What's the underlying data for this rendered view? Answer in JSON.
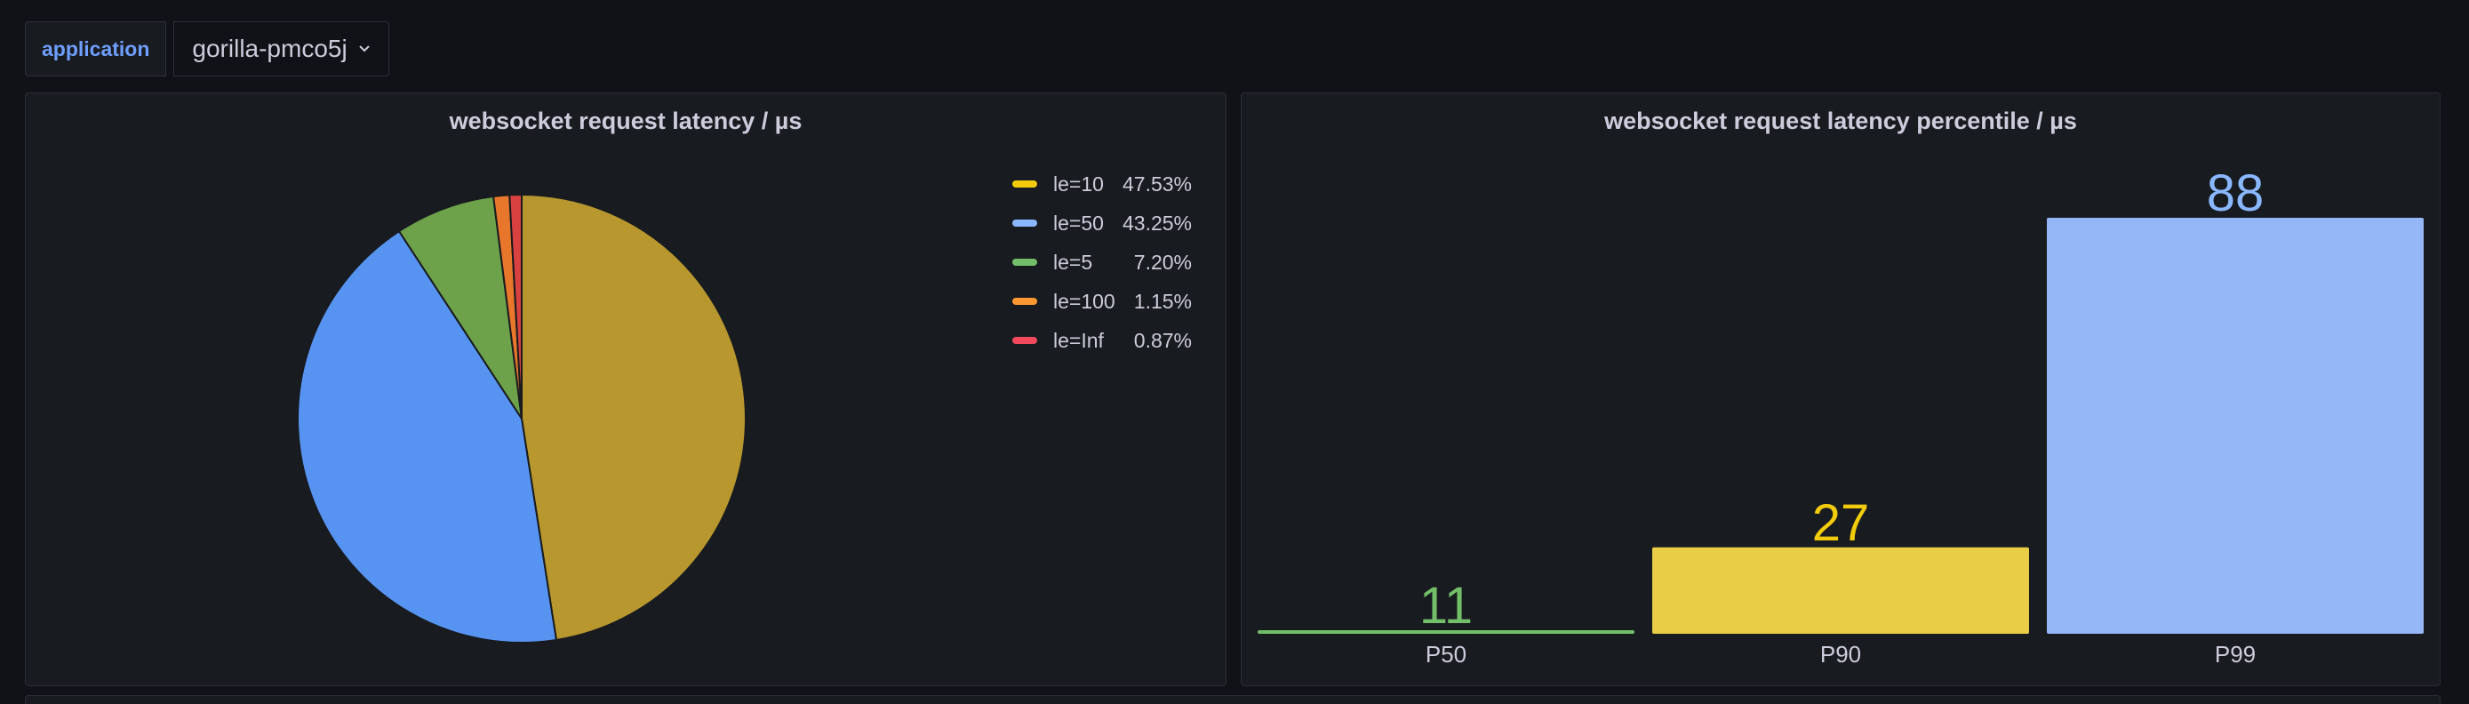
{
  "variables": {
    "label": "application",
    "value": "gorilla-pmco5j"
  },
  "panels": {
    "pie": {
      "title": "websocket request latency / µs"
    },
    "bar": {
      "title": "websocket request latency percentile / µs"
    }
  },
  "chart_data": [
    {
      "type": "pie",
      "title": "websocket request latency / µs",
      "legend_placement": "right",
      "slices": [
        {
          "name": "le=10",
          "percent": 47.53,
          "label": "47.53%",
          "color": "#b8982e"
        },
        {
          "name": "le=50",
          "percent": 43.25,
          "label": "43.25%",
          "color": "#5794f2"
        },
        {
          "name": "le=5",
          "percent": 7.2,
          "label": "7.20%",
          "color": "#6da14a"
        },
        {
          "name": "le=100",
          "percent": 1.15,
          "label": "1.15%",
          "color": "#e8762b"
        },
        {
          "name": "le=Inf",
          "percent": 0.87,
          "label": "0.87%",
          "color": "#d94040"
        }
      ],
      "legend_colors": [
        "#f2cc0c",
        "#8ab8ff",
        "#73bf69",
        "#ff9830",
        "#f2495c"
      ]
    },
    {
      "type": "bar",
      "title": "websocket request latency percentile / µs",
      "categories": [
        "P50",
        "P90",
        "P99"
      ],
      "values": [
        11,
        27,
        88
      ],
      "colors": [
        "#73bf69",
        "#eacd47",
        "#95b6f7"
      ],
      "value_label_colors": [
        "#73bf69",
        "#f2cc0c",
        "#8ab8ff"
      ],
      "ylim": [
        0,
        88
      ],
      "threshold_base": 11
    }
  ]
}
